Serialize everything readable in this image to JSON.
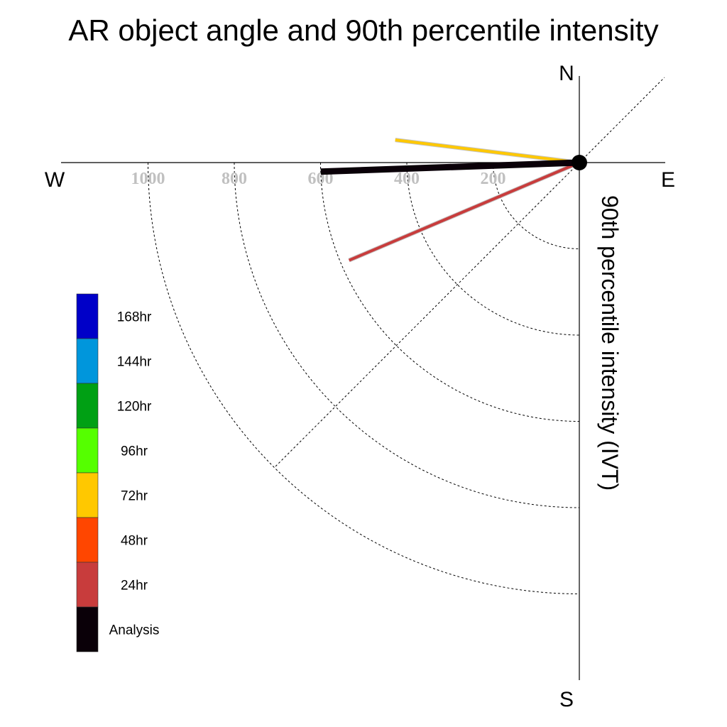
{
  "chart_data": {
    "type": "polar-vector",
    "title": "AR object angle and 90th percentile intensity",
    "ylabel": "90th percentile intensity (IVT)",
    "compass": {
      "north": "N",
      "south": "S",
      "east": "E",
      "west": "W"
    },
    "radial_ticks": [
      "200",
      "400",
      "600",
      "800",
      "1000"
    ],
    "radial_tick_values": [
      200,
      400,
      600,
      800,
      1000
    ],
    "radial_max": 1200,
    "grid": true,
    "legend_position": "left",
    "legend": [
      {
        "label": "168hr",
        "color": "#0000c8"
      },
      {
        "label": "144hr",
        "color": "#0096dc"
      },
      {
        "label": "120hr",
        "color": "#00a014"
      },
      {
        "label": "96hr",
        "color": "#55ff00"
      },
      {
        "label": "72hr",
        "color": "#ffc800"
      },
      {
        "label": "48hr",
        "color": "#ff4600"
      },
      {
        "label": "24hr",
        "color": "#c83c3c"
      },
      {
        "label": "Analysis",
        "color": "#0a0008"
      }
    ],
    "series": [
      {
        "name": "72hr",
        "angle_deg": 173,
        "intensity": 430,
        "color": "#ffc800"
      },
      {
        "name": "24hr",
        "angle_deg": 203,
        "intensity": 580,
        "color": "#c83c3c"
      },
      {
        "name": "Analysis",
        "angle_deg": 182,
        "intensity": 600,
        "color": "#0a0008"
      }
    ]
  }
}
